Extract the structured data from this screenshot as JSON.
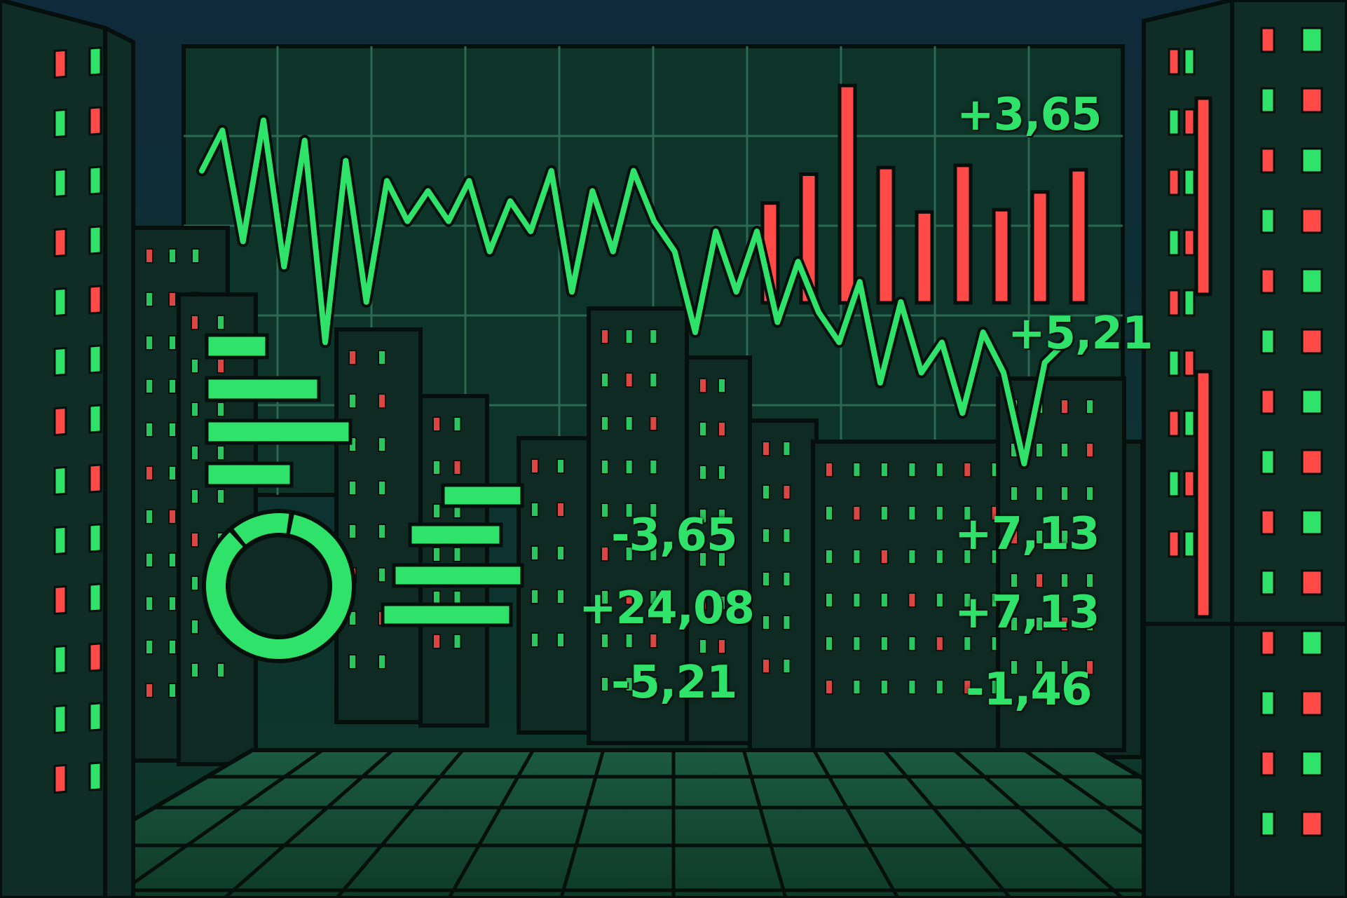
{
  "palette": {
    "sky_top": "#0f2a3a",
    "sky_bottom": "#0d3326",
    "building": "#0f2a22",
    "building_dark": "#0a1f19",
    "outline": "#050f0c",
    "grid": "#1e4a3c",
    "green": "#2fe26a",
    "red": "#ff4a48",
    "floor": "#16503a"
  },
  "readouts": {
    "r1": "+3,65",
    "r2": "+5,21",
    "r3": "-3,65",
    "r4": "+24,08",
    "r5": "-5,21",
    "r6": "+7,13",
    "r7": "+7,13",
    "r8": "-1,46"
  },
  "chart_data": [
    {
      "type": "line",
      "series": [
        {
          "values": [
            62,
            70,
            48,
            72,
            43,
            68,
            28,
            64,
            36,
            60,
            52,
            58,
            52,
            60,
            46,
            56,
            50,
            62,
            38,
            58,
            46,
            62,
            52,
            46,
            30,
            50,
            38,
            50,
            32,
            44,
            34,
            28,
            40,
            20,
            36,
            22,
            28,
            14,
            30,
            22,
            4,
            24,
            28
          ]
        }
      ]
    },
    {
      "type": "bar",
      "series": [
        {
          "values": [
            45,
            58,
            98,
            61,
            41,
            62,
            42,
            50,
            60
          ]
        }
      ]
    },
    {
      "type": "bar",
      "series": [
        {
          "values": [
            86,
            160,
            205,
            121
          ]
        }
      ]
    },
    {
      "type": "bar",
      "series": [
        {
          "values": [
            113,
            130,
            183,
            183
          ]
        }
      ]
    },
    {
      "type": "pie",
      "series": [
        {
          "values": [
            86,
            14
          ]
        }
      ]
    }
  ]
}
